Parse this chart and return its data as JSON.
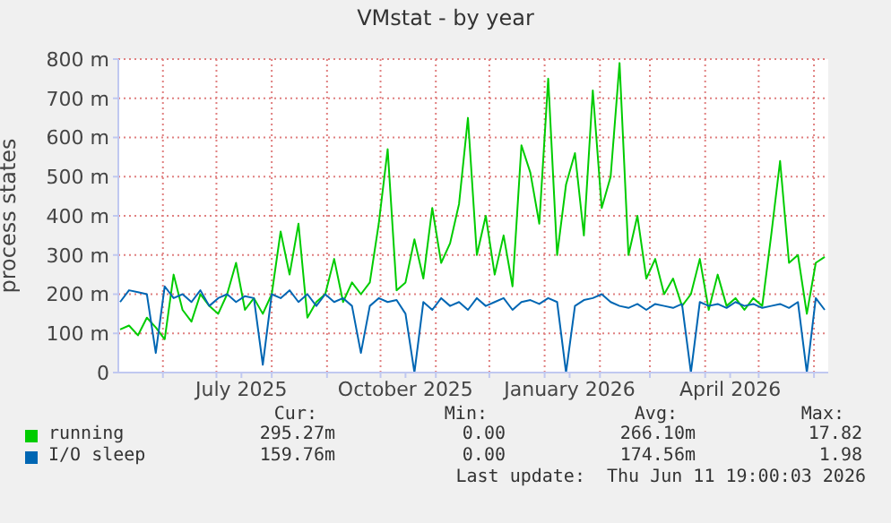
{
  "chart_data": {
    "type": "line",
    "title": "VMstat - by year",
    "ylabel": "process states",
    "x": [
      "2025-05-08",
      "2025-05-13",
      "2025-05-18",
      "2025-05-23",
      "2025-05-28",
      "2025-06-02",
      "2025-06-07",
      "2025-06-12",
      "2025-06-17",
      "2025-06-22",
      "2025-06-27",
      "2025-07-02",
      "2025-07-07",
      "2025-07-12",
      "2025-07-17",
      "2025-07-22",
      "2025-07-27",
      "2025-08-01",
      "2025-08-06",
      "2025-08-11",
      "2025-08-16",
      "2025-08-21",
      "2025-08-26",
      "2025-08-31",
      "2025-09-05",
      "2025-09-10",
      "2025-09-15",
      "2025-09-20",
      "2025-09-25",
      "2025-09-30",
      "2025-10-05",
      "2025-10-10",
      "2025-10-15",
      "2025-10-20",
      "2025-10-25",
      "2025-10-30",
      "2025-11-04",
      "2025-11-09",
      "2025-11-14",
      "2025-11-19",
      "2025-11-24",
      "2025-11-29",
      "2025-12-04",
      "2025-12-09",
      "2025-12-14",
      "2025-12-19",
      "2025-12-24",
      "2025-12-29",
      "2026-01-03",
      "2026-01-08",
      "2026-01-13",
      "2026-01-18",
      "2026-01-23",
      "2026-01-28",
      "2026-02-02",
      "2026-02-07",
      "2026-02-12",
      "2026-02-17",
      "2026-02-22",
      "2026-02-27",
      "2026-03-04",
      "2026-03-09",
      "2026-03-14",
      "2026-03-19",
      "2026-03-24",
      "2026-03-29",
      "2026-04-03",
      "2026-04-08",
      "2026-04-13",
      "2026-04-18",
      "2026-04-23",
      "2026-04-28",
      "2026-05-03",
      "2026-05-08",
      "2026-05-13",
      "2026-05-18",
      "2026-05-23",
      "2026-05-28",
      "2026-06-02",
      "2026-06-07"
    ],
    "series": [
      {
        "name": "running",
        "color": "#00cc00",
        "values": [
          110,
          120,
          95,
          140,
          115,
          85,
          250,
          160,
          130,
          200,
          170,
          150,
          200,
          280,
          160,
          190,
          150,
          200,
          360,
          250,
          380,
          140,
          180,
          200,
          290,
          180,
          230,
          200,
          230,
          380,
          570,
          210,
          230,
          340,
          240,
          420,
          280,
          330,
          430,
          650,
          300,
          400,
          250,
          350,
          220,
          580,
          510,
          380,
          750,
          300,
          480,
          560,
          350,
          720,
          420,
          500,
          790,
          300,
          400,
          240,
          290,
          200,
          240,
          170,
          200,
          290,
          160,
          250,
          170,
          190,
          160,
          190,
          170,
          350,
          540,
          280,
          300,
          150,
          280,
          295
        ]
      },
      {
        "name": "I/O sleep",
        "color": "#0066b3",
        "values": [
          180,
          210,
          205,
          200,
          50,
          220,
          190,
          200,
          180,
          210,
          170,
          190,
          200,
          180,
          195,
          190,
          20,
          200,
          190,
          210,
          180,
          200,
          170,
          200,
          180,
          190,
          170,
          50,
          170,
          190,
          180,
          185,
          150,
          0,
          180,
          160,
          190,
          170,
          180,
          160,
          190,
          170,
          180,
          190,
          160,
          180,
          185,
          175,
          190,
          180,
          0,
          170,
          185,
          190,
          200,
          180,
          170,
          165,
          175,
          160,
          175,
          170,
          165,
          175,
          0,
          180,
          170,
          175,
          165,
          180,
          170,
          175,
          165,
          170,
          175,
          165,
          180,
          0,
          190,
          160
        ]
      }
    ],
    "xlim": [
      "2025-05-07",
      "2026-06-09"
    ],
    "xticks": [
      {
        "value": "2025-06-01",
        "label": null
      },
      {
        "value": "2025-07-01",
        "label": null
      },
      {
        "value": "2025-07-15",
        "label": "July 2025"
      },
      {
        "value": "2025-08-01",
        "label": null
      },
      {
        "value": "2025-09-01",
        "label": null
      },
      {
        "value": "2025-10-01",
        "label": null
      },
      {
        "value": "2025-10-15",
        "label": "October 2025"
      },
      {
        "value": "2025-11-01",
        "label": null
      },
      {
        "value": "2025-12-01",
        "label": null
      },
      {
        "value": "2026-01-01",
        "label": null
      },
      {
        "value": "2026-01-15",
        "label": "January 2026"
      },
      {
        "value": "2026-02-01",
        "label": null
      },
      {
        "value": "2026-03-01",
        "label": null
      },
      {
        "value": "2026-04-01",
        "label": null
      },
      {
        "value": "2026-04-15",
        "label": "April 2026"
      },
      {
        "value": "2026-05-01",
        "label": null
      },
      {
        "value": "2026-06-01",
        "label": null
      }
    ],
    "ylim": [
      0,
      800
    ],
    "yticks": [
      0,
      {
        "value": 100,
        "label": "100 m"
      },
      {
        "value": 200,
        "label": "200 m"
      },
      {
        "value": 300,
        "label": "300 m"
      },
      {
        "value": 400,
        "label": "400 m"
      },
      {
        "value": 500,
        "label": "500 m"
      },
      {
        "value": 600,
        "label": "600 m"
      },
      {
        "value": 700,
        "label": "700 m"
      },
      {
        "value": 800,
        "label": "800 m"
      }
    ],
    "grid": true,
    "legend": "bottom",
    "marker": "none",
    "line_style": "solid",
    "annotations": [
      "Cur:",
      "Min:",
      "Avg:",
      "Max:",
      "295.27m",
      "0.00",
      "266.10m",
      "17.82",
      "159.76m",
      "0.00",
      "174.56m",
      "1.98",
      "Last update:  Thu Jun 11 19:00:03 2026"
    ]
  }
}
